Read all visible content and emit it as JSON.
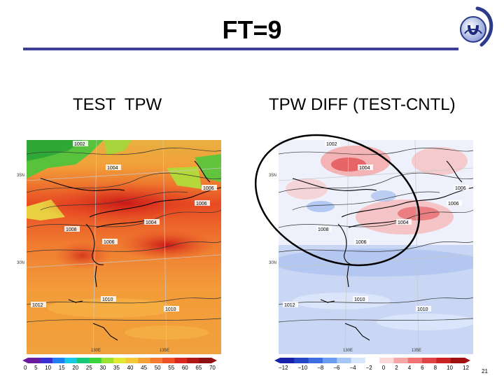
{
  "slide": {
    "title": "FT=9",
    "page_number": "21"
  },
  "panels": {
    "left": {
      "label": "TEST  TPW",
      "lat_labels": [
        "35N",
        "30N"
      ],
      "lon_labels": [
        "130E",
        "135E"
      ],
      "isobar_labels": [
        "1002",
        "1004",
        "1006",
        "1006",
        "1004",
        "1008",
        "1006",
        "1012",
        "1010",
        "1010"
      ],
      "colorbar": {
        "ticks": [
          "0",
          "5",
          "10",
          "15",
          "20",
          "25",
          "30",
          "35",
          "40",
          "45",
          "50",
          "55",
          "60",
          "65",
          "70"
        ],
        "colors": [
          "#6b1aa0",
          "#3a2fd0",
          "#1f7ff0",
          "#18c8e6",
          "#16c878",
          "#3cd23c",
          "#9ee030",
          "#e0e830",
          "#f5c838",
          "#f6a038",
          "#f47a32",
          "#ee5028",
          "#d82820",
          "#b01818",
          "#8e1010"
        ]
      }
    },
    "right": {
      "label": "TPW DIFF (TEST-CNTL)",
      "lat_labels": [
        "35N",
        "30N"
      ],
      "lon_labels": [
        "130E",
        "135E"
      ],
      "isobar_labels": [
        "1002",
        "1004",
        "1006",
        "1006",
        "1004",
        "1008",
        "1006",
        "1012",
        "1010",
        "1010"
      ],
      "colorbar": {
        "ticks": [
          "−12",
          "−10",
          "−8",
          "−6",
          "−4",
          "−2",
          "0",
          "2",
          "4",
          "6",
          "8",
          "10",
          "12"
        ],
        "colors": [
          "#1822a8",
          "#2646c8",
          "#3c6ee0",
          "#6c9cf0",
          "#a6c6f6",
          "#d8e6fb",
          "#ffffff",
          "#fbd8d8",
          "#f6a6a6",
          "#f07272",
          "#e04444",
          "#c82222",
          "#a01010"
        ]
      }
    }
  }
}
